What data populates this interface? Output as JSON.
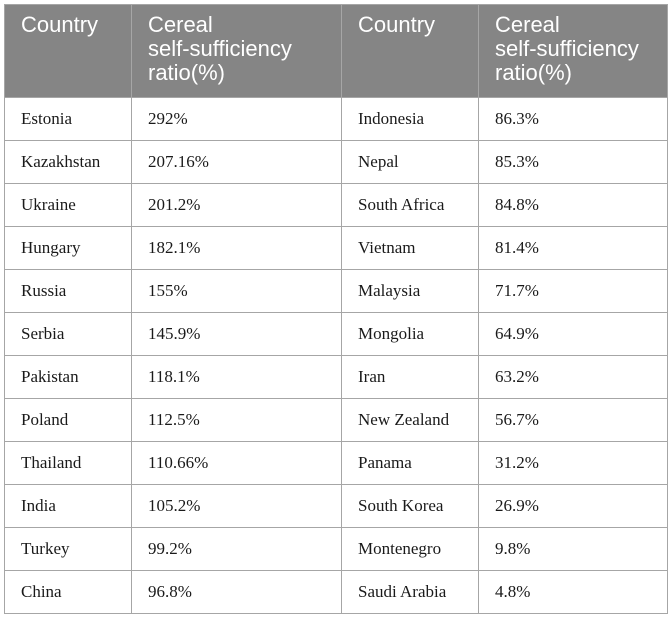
{
  "table": {
    "headers": [
      {
        "lines": [
          "Country"
        ]
      },
      {
        "lines": [
          "Cereal",
          "self-sufficiency",
          "ratio(%)"
        ]
      },
      {
        "lines": [
          "Country"
        ]
      },
      {
        "lines": [
          "Cereal",
          "self-sufficiency",
          "ratio(%)"
        ]
      }
    ],
    "rows": [
      [
        "Estonia",
        "292%",
        "Indonesia",
        "86.3%"
      ],
      [
        "Kazakhstan",
        "207.16%",
        "Nepal",
        "85.3%"
      ],
      [
        "Ukraine",
        "201.2%",
        "South Africa",
        "84.8%"
      ],
      [
        "Hungary",
        "182.1%",
        "Vietnam",
        "81.4%"
      ],
      [
        "Russia",
        "155%",
        "Malaysia",
        "71.7%"
      ],
      [
        "Serbia",
        "145.9%",
        "Mongolia",
        "64.9%"
      ],
      [
        "Pakistan",
        "118.1%",
        "Iran",
        "63.2%"
      ],
      [
        "Poland",
        "112.5%",
        "New Zealand",
        "56.7%"
      ],
      [
        "Thailand",
        "110.66%",
        "Panama",
        "31.2%"
      ],
      [
        "India",
        "105.2%",
        "South Korea",
        "26.9%"
      ],
      [
        "Turkey",
        "99.2%",
        "Montenegro",
        "9.8%"
      ],
      [
        "China",
        "96.8%",
        "Saudi Arabia",
        "4.8%"
      ]
    ]
  },
  "colors": {
    "header_background": "#858585",
    "header_text": "#ffffff",
    "border": "#a6a6a6"
  }
}
